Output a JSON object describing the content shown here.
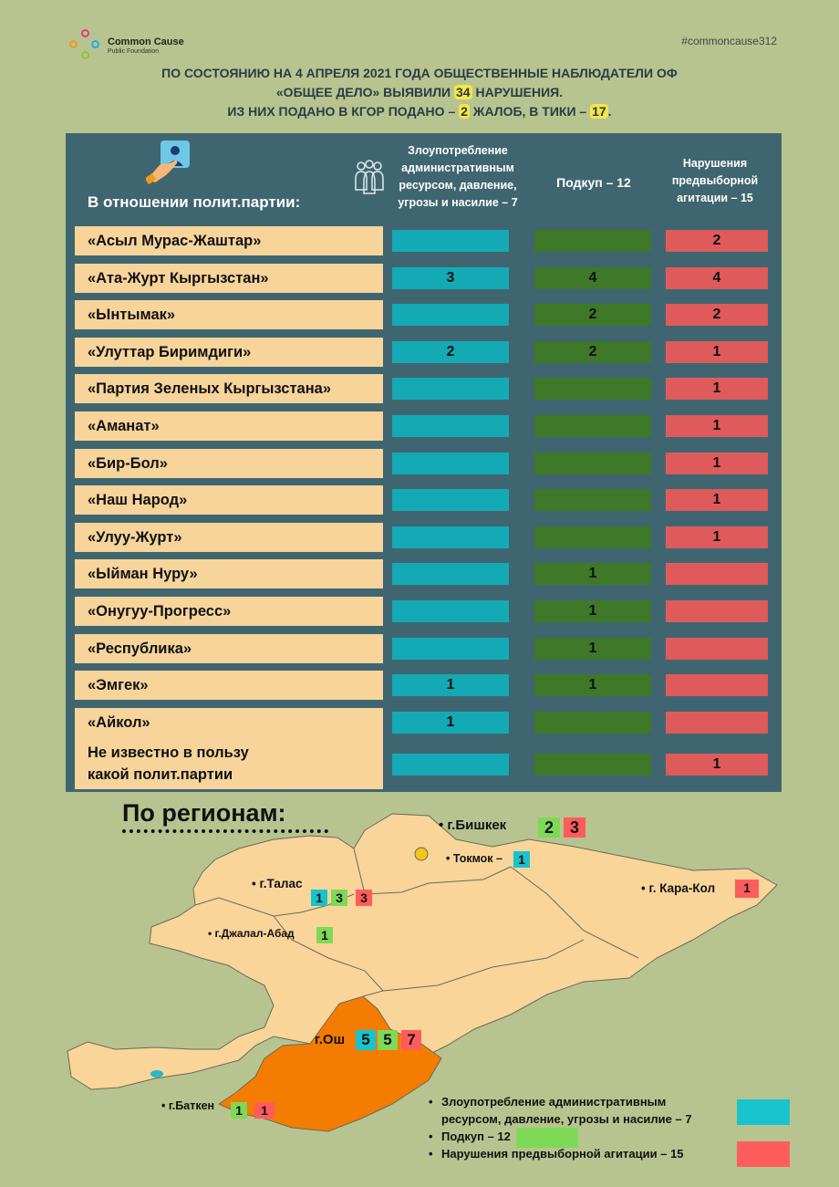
{
  "header": {
    "logo_name": "Common Cause",
    "logo_sub": "Public Foundation",
    "hashtag": "#commoncause312",
    "line1": "ПО СОСТОЯНИЮ НА 4 АПРЕЛЯ 2021 ГОДА ОБЩЕСТВЕННЫЕ НАБЛЮДАТЕЛИ ОФ",
    "line2_a": "«ОБЩЕЕ ДЕЛО» ВЫЯВИЛИ ",
    "line2_num": "34",
    "line2_b": " НАРУШЕНИЯ.",
    "line3_a": "ИЗ НИХ ПОДАНО В КГОР ПОДАНО – ",
    "line3_num1": "2",
    "line3_b": " ЖАЛОБ, В ТИКИ – ",
    "line3_num2": "17",
    "line3_c": "."
  },
  "table": {
    "party_header": "В отношении полит.партии:",
    "col1": [
      "Злоупотребление",
      "административным",
      "ресурсом, давление,",
      "угрозы и насилие – 7"
    ],
    "col2": "Подкуп – 12",
    "col3": [
      "Нарушения",
      "предвыборной",
      "агитации – 15"
    ],
    "rows": [
      {
        "name": "«Асыл Мурас-Жаштар»",
        "c1": "",
        "c2": "",
        "c3": "2"
      },
      {
        "name": "«Ата-Журт Кыргызстан»",
        "c1": "3",
        "c2": "4",
        "c3": "4"
      },
      {
        "name": "«Ынтымак»",
        "c1": "",
        "c2": "2",
        "c3": "2"
      },
      {
        "name": "«Улуттар Биримдиги»",
        "c1": "2",
        "c2": "2",
        "c3": "1"
      },
      {
        "name": "«Партия Зеленых Кыргызстана»",
        "c1": "",
        "c2": "",
        "c3": "1"
      },
      {
        "name": "«Аманат»",
        "c1": "",
        "c2": "",
        "c3": "1"
      },
      {
        "name": "«Бир-Бол»",
        "c1": "",
        "c2": "",
        "c3": "1"
      },
      {
        "name": "«Наш Народ»",
        "c1": "",
        "c2": "",
        "c3": "1"
      },
      {
        "name": "«Улуу-Журт»",
        "c1": "",
        "c2": "",
        "c3": "1"
      },
      {
        "name": "«Ыйман Нуру»",
        "c1": "",
        "c2": "1",
        "c3": ""
      },
      {
        "name": "«Онугуу-Прогресс»",
        "c1": "",
        "c2": "1",
        "c3": ""
      },
      {
        "name": "«Республика»",
        "c1": "",
        "c2": "1",
        "c3": ""
      },
      {
        "name": "«Эмгек»",
        "c1": "1",
        "c2": "1",
        "c3": ""
      },
      {
        "name": "«Айкол»",
        "c1": "1",
        "c2": "",
        "c3": ""
      }
    ],
    "last_row": {
      "name1": "Не известно в пользу",
      "name2": "какой полит.партии",
      "c1": "",
      "c2": "",
      "c3": "1"
    }
  },
  "regions": {
    "title": "По регионам:",
    "bishkek": {
      "label": "• г.Бишкек",
      "g": "2",
      "r": "3"
    },
    "tokmok": {
      "label": "• Токмок –",
      "t": "1"
    },
    "talas": {
      "label": "•   г.Талас",
      "t": "1",
      "g": "3",
      "r": "3"
    },
    "karakol": {
      "label": "•  г. Кара-Кол",
      "r": "1"
    },
    "jalalabad": {
      "label": "•  г.Джалал-Абад",
      "g": "1"
    },
    "osh": {
      "label": "г.Ош",
      "t": "5",
      "g": "5",
      "r": "7"
    },
    "batken": {
      "label": "•  г.Баткен",
      "g": "1",
      "r": "1"
    }
  },
  "legend": {
    "item1a": "Злоупотребление административным",
    "item1b": "ресурсом, давление, угрозы и насилие – 7",
    "item2": "Подкуп – 12",
    "item3": "Нарушения предвыборной агитации – 15"
  },
  "colors": {
    "background": "#b8c48f",
    "table_header": "#3f6670",
    "party_cell": "#f6d49a",
    "admin_resource": "#13aab5",
    "bribery": "#3e7828",
    "agitation": "#df5b5b",
    "map_land": "#f9d59a",
    "osh_region": "#f47c00",
    "highlight": "#f5e64a"
  }
}
